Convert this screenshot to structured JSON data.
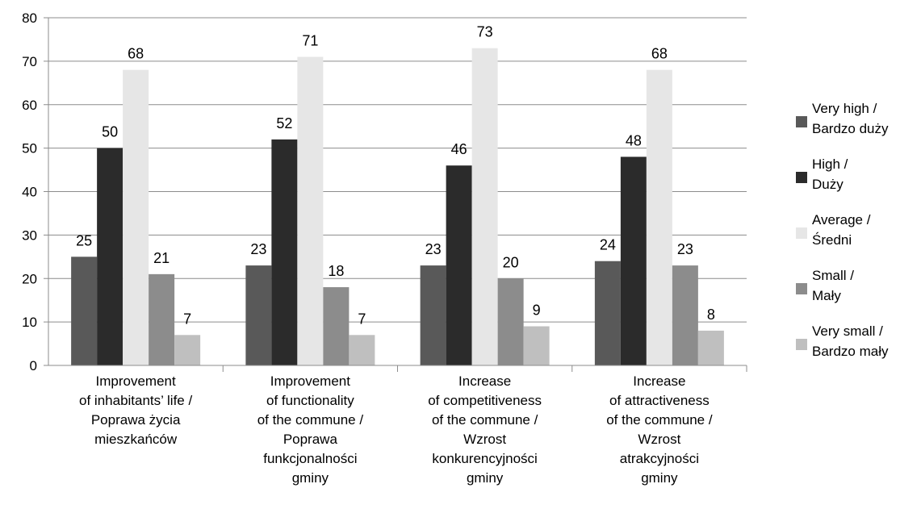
{
  "chart_data": {
    "type": "bar",
    "title": "",
    "xlabel": "",
    "ylabel": "",
    "ylim": [
      0,
      80
    ],
    "yticks": [
      0,
      10,
      20,
      30,
      40,
      50,
      60,
      70,
      80
    ],
    "grid": true,
    "legend_position": "right",
    "categories": [
      [
        "Improvement",
        "of inhabitants’ life /",
        "Poprawa życia",
        "mieszkańców"
      ],
      [
        "Improvement",
        "of functionality",
        "of the commune /",
        "Poprawa",
        "funkcjonalności",
        "gminy"
      ],
      [
        "Increase",
        "of competitiveness",
        "of the commune /",
        "Wzrost",
        "konkurencyjności",
        "gminy"
      ],
      [
        "Increase",
        "of attractiveness",
        "of the commune /",
        "Wzrost",
        "atrakcyjności",
        "gminy"
      ]
    ],
    "series": [
      {
        "name": [
          "Very high /",
          "Bardzo duży"
        ],
        "color": "#595959",
        "values": [
          25,
          23,
          23,
          24
        ]
      },
      {
        "name": [
          "High /",
          "Duży"
        ],
        "color": "#2b2b2b",
        "values": [
          50,
          52,
          46,
          48
        ]
      },
      {
        "name": [
          "Average /",
          "Średni"
        ],
        "color": "#e6e6e6",
        "values": [
          68,
          71,
          73,
          68
        ]
      },
      {
        "name": [
          "Small /",
          "Mały"
        ],
        "color": "#8c8c8c",
        "values": [
          21,
          18,
          20,
          23
        ]
      },
      {
        "name": [
          "Very small /",
          "Bardzo mały"
        ],
        "color": "#bfbfbf",
        "values": [
          7,
          7,
          9,
          8
        ]
      }
    ]
  }
}
